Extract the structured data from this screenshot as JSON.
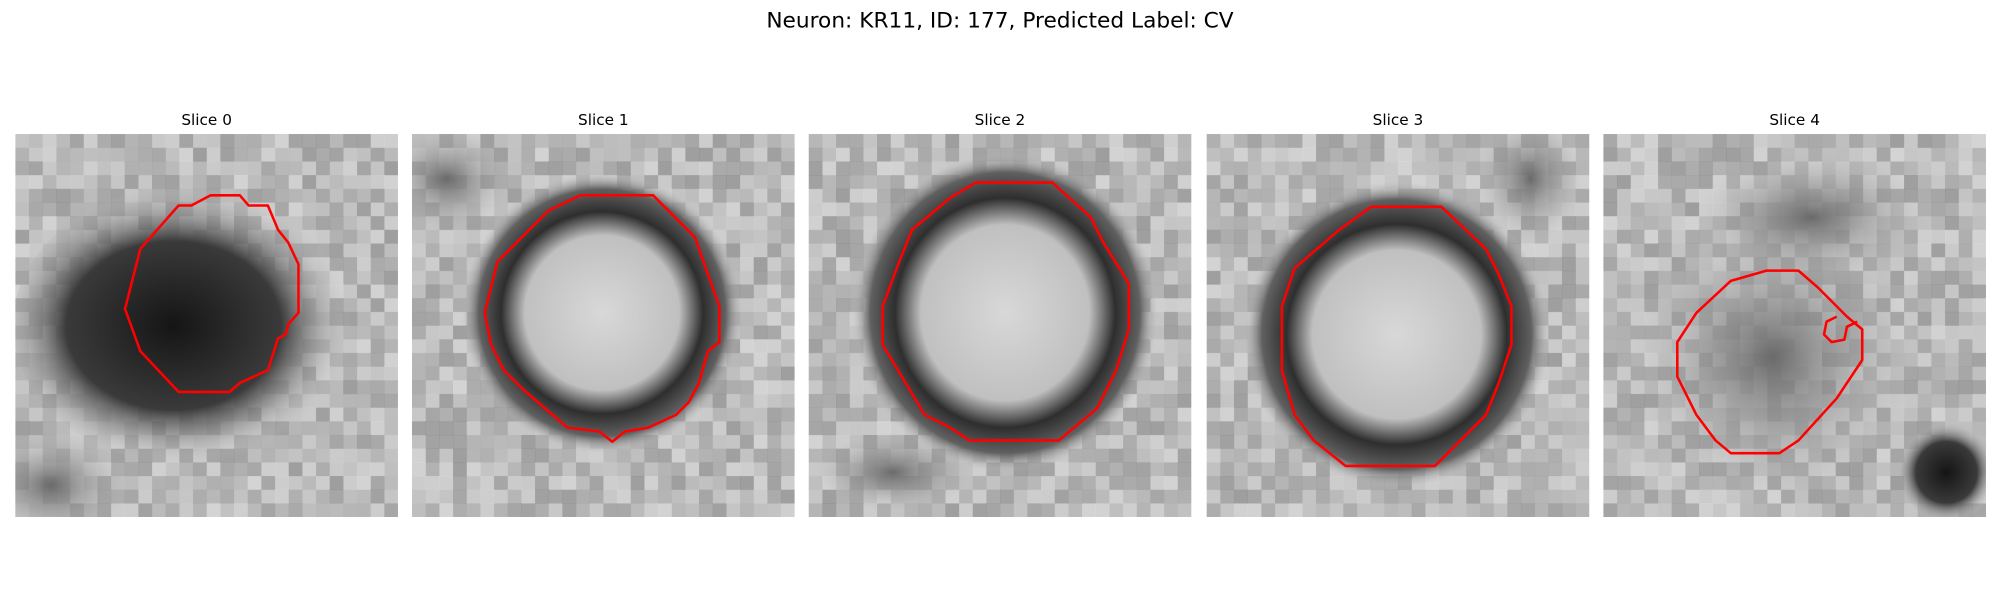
{
  "title": "Neuron: KR11, ID: 177, Predicted Label: CV",
  "panels": [
    {
      "title": "Slice 0"
    },
    {
      "title": "Slice 1"
    },
    {
      "title": "Slice 2"
    },
    {
      "title": "Slice 3"
    },
    {
      "title": "Slice 4"
    }
  ]
}
